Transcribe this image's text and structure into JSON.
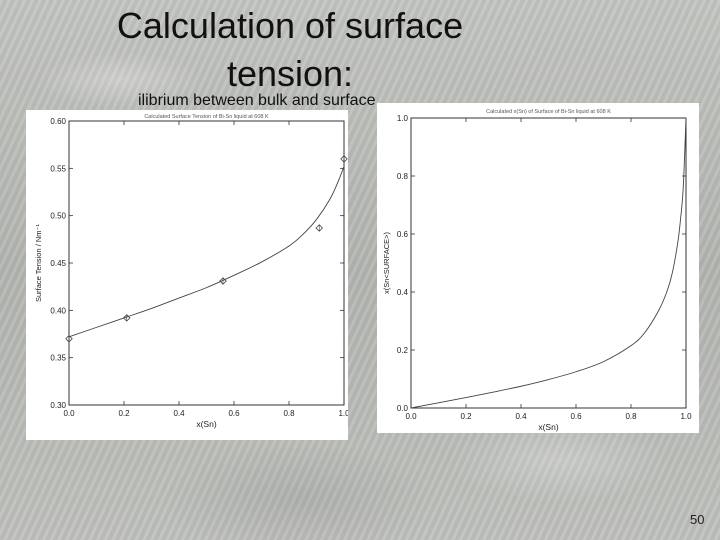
{
  "slide": {
    "title": "Calculation of surface tension:",
    "subtitle_left": "ilibrium between bulk and surface",
    "page_number": "50"
  },
  "chart_data": [
    {
      "type": "line",
      "title": "Calculated Surface Tension of Bi-Sn liquid at 608 K",
      "xlabel": "x(Sn)",
      "ylabel": "Surface Tension / Nm⁻¹",
      "xlim": [
        0.0,
        1.0
      ],
      "ylim": [
        0.3,
        0.6
      ],
      "xticks": [
        "0.0",
        "0.2",
        "0.4",
        "0.6",
        "0.8",
        "1.0"
      ],
      "yticks": [
        "0.30",
        "0.35",
        "0.40",
        "0.45",
        "0.50",
        "0.55",
        "0.60"
      ],
      "grid": false,
      "series": [
        {
          "type": "line",
          "x": [
            0.0,
            0.1,
            0.2,
            0.3,
            0.4,
            0.5,
            0.6,
            0.7,
            0.8,
            0.85,
            0.9,
            0.95,
            0.98,
            1.0
          ],
          "y": [
            0.372,
            0.382,
            0.392,
            0.402,
            0.413,
            0.424,
            0.437,
            0.451,
            0.468,
            0.48,
            0.496,
            0.518,
            0.537,
            0.552
          ]
        },
        {
          "type": "scatter",
          "marker": "diamond",
          "x": [
            0.0,
            0.21,
            0.56,
            0.91,
            1.0
          ],
          "y": [
            0.37,
            0.392,
            0.431,
            0.487,
            0.56
          ]
        }
      ]
    },
    {
      "type": "line",
      "title": "Calculated x(Sn) of Surface of Bi-Sn liquid at 608 K",
      "xlabel": "x(Sn)",
      "ylabel": "x(Sn<SURFACE>)",
      "xlim": [
        0.0,
        1.0
      ],
      "ylim": [
        0.0,
        1.0
      ],
      "xticks": [
        "0.0",
        "0.2",
        "0.4",
        "0.6",
        "0.8",
        "1.0"
      ],
      "yticks": [
        "0.0",
        "0.2",
        "0.4",
        "0.6",
        "0.8",
        "1.0"
      ],
      "grid": false,
      "series": [
        {
          "type": "line",
          "x": [
            0.0,
            0.1,
            0.2,
            0.3,
            0.4,
            0.5,
            0.6,
            0.7,
            0.8,
            0.85,
            0.9,
            0.93,
            0.95,
            0.97,
            0.98,
            0.99,
            1.0
          ],
          "y": [
            0.0,
            0.018,
            0.036,
            0.055,
            0.075,
            0.098,
            0.125,
            0.16,
            0.215,
            0.26,
            0.335,
            0.4,
            0.465,
            0.57,
            0.65,
            0.76,
            1.0
          ]
        }
      ]
    }
  ]
}
